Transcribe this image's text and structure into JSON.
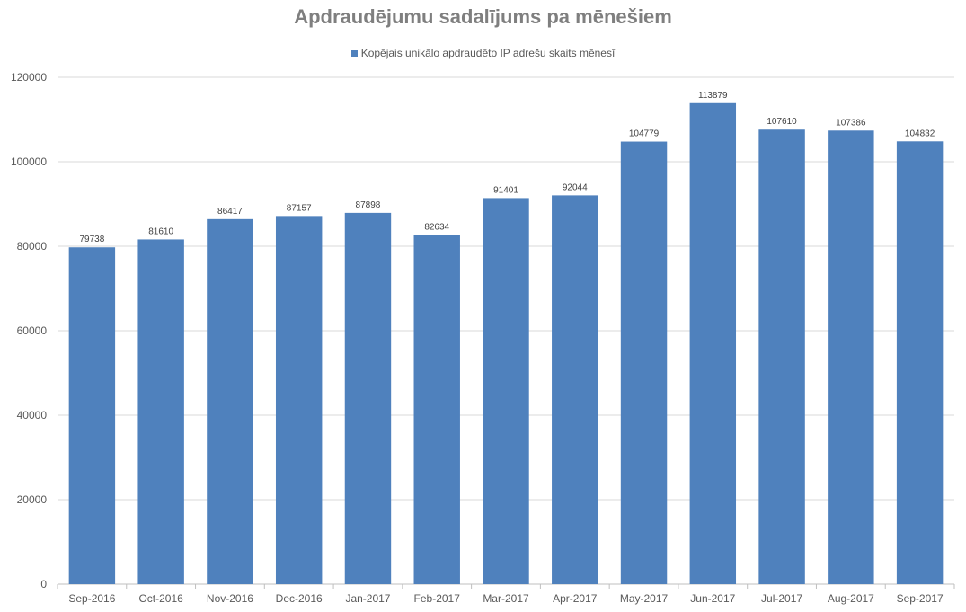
{
  "chart_data": {
    "type": "bar",
    "title": "Apdraudējumu sadalījums pa mēnešiem",
    "categories": [
      "Sep-2016",
      "Oct-2016",
      "Nov-2016",
      "Dec-2016",
      "Jan-2017",
      "Feb-2017",
      "Mar-2017",
      "Apr-2017",
      "May-2017",
      "Jun-2017",
      "Jul-2017",
      "Aug-2017",
      "Sep-2017"
    ],
    "series": [
      {
        "name": "Kopējais unikālo apdraudēto IP adrešu skaits mēnesī",
        "values": [
          79738,
          81610,
          86417,
          87157,
          87898,
          82634,
          91401,
          92044,
          104779,
          113879,
          107610,
          107386,
          104832
        ],
        "color": "#4f81bd"
      }
    ],
    "ylim": [
      0,
      120000
    ],
    "yticks": [
      0,
      20000,
      40000,
      60000,
      80000,
      100000,
      120000
    ],
    "grid": true,
    "legend_position": "top"
  }
}
